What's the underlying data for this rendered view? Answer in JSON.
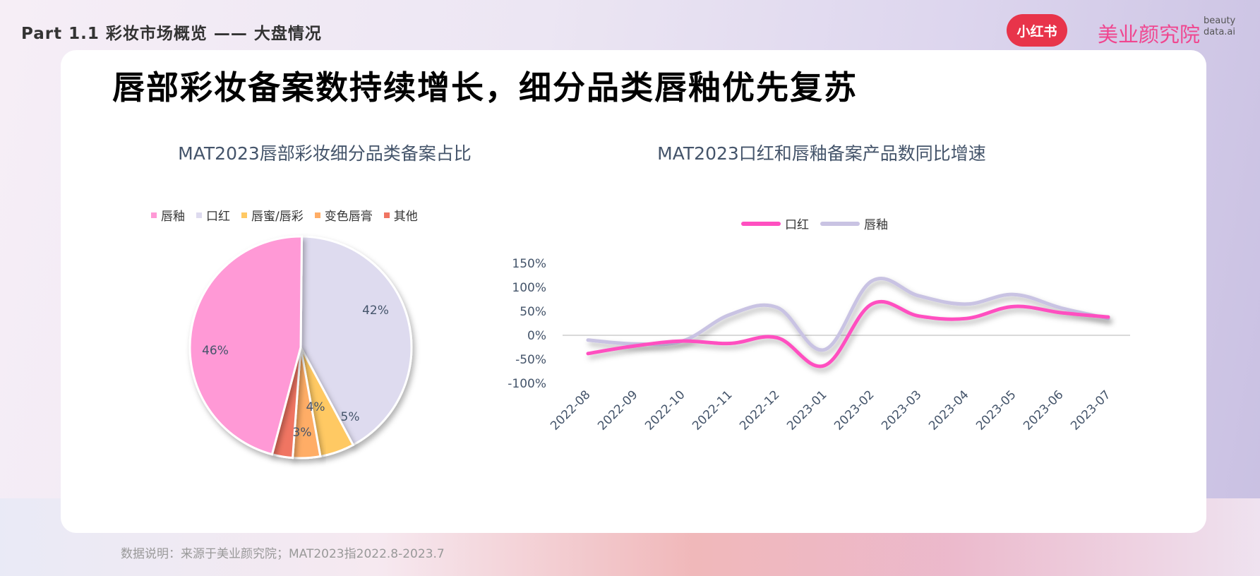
{
  "header": {
    "section": "Part 1.1  彩妆市场概览 —— 大盘情况",
    "xhs_logo": "小红书",
    "brand": "美业颜究院",
    "brand_sub": "beauty data.ai"
  },
  "title": "唇部彩妆备案数持续增长，细分品类唇釉优先复苏",
  "footer": "数据说明：来源于美业颜究院；MAT2023指2022.8-2023.7",
  "chart_data": [
    {
      "type": "pie",
      "title": "MAT2023唇部彩妆细分品类备案占比",
      "legend_position": "top",
      "labels": [
        "唇釉",
        "口红",
        "唇蜜/唇彩",
        "变色唇膏",
        "其他"
      ],
      "values": [
        46,
        42,
        5,
        4,
        3
      ],
      "value_labels": [
        "46%",
        "42%",
        "5%",
        "4%",
        "3%"
      ],
      "colors": [
        "#ff99d6",
        "#dedbef",
        "#ffc964",
        "#ffad66",
        "#f07462"
      ]
    },
    {
      "type": "line",
      "title": "MAT2023口红和唇釉备案产品数同比增速",
      "legend_position": "top",
      "categories": [
        "2022-08",
        "2022-09",
        "2022-10",
        "2022-11",
        "2022-12",
        "2023-01",
        "2023-02",
        "2023-03",
        "2023-04",
        "2023-05",
        "2023-06",
        "2023-07"
      ],
      "series": [
        {
          "name": "口红",
          "color": "#ff4fc0",
          "values": [
            -38,
            -22,
            -12,
            -17,
            -5,
            -63,
            65,
            40,
            35,
            60,
            47,
            38
          ]
        },
        {
          "name": "唇釉",
          "color": "#c9c3e3",
          "values": [
            -10,
            -18,
            -12,
            43,
            58,
            -30,
            113,
            82,
            65,
            85,
            57,
            35
          ]
        }
      ],
      "yticks": [
        "150%",
        "100%",
        "50%",
        "0%",
        "-50%",
        "-100%"
      ],
      "ylim": [
        -100,
        150
      ]
    }
  ]
}
